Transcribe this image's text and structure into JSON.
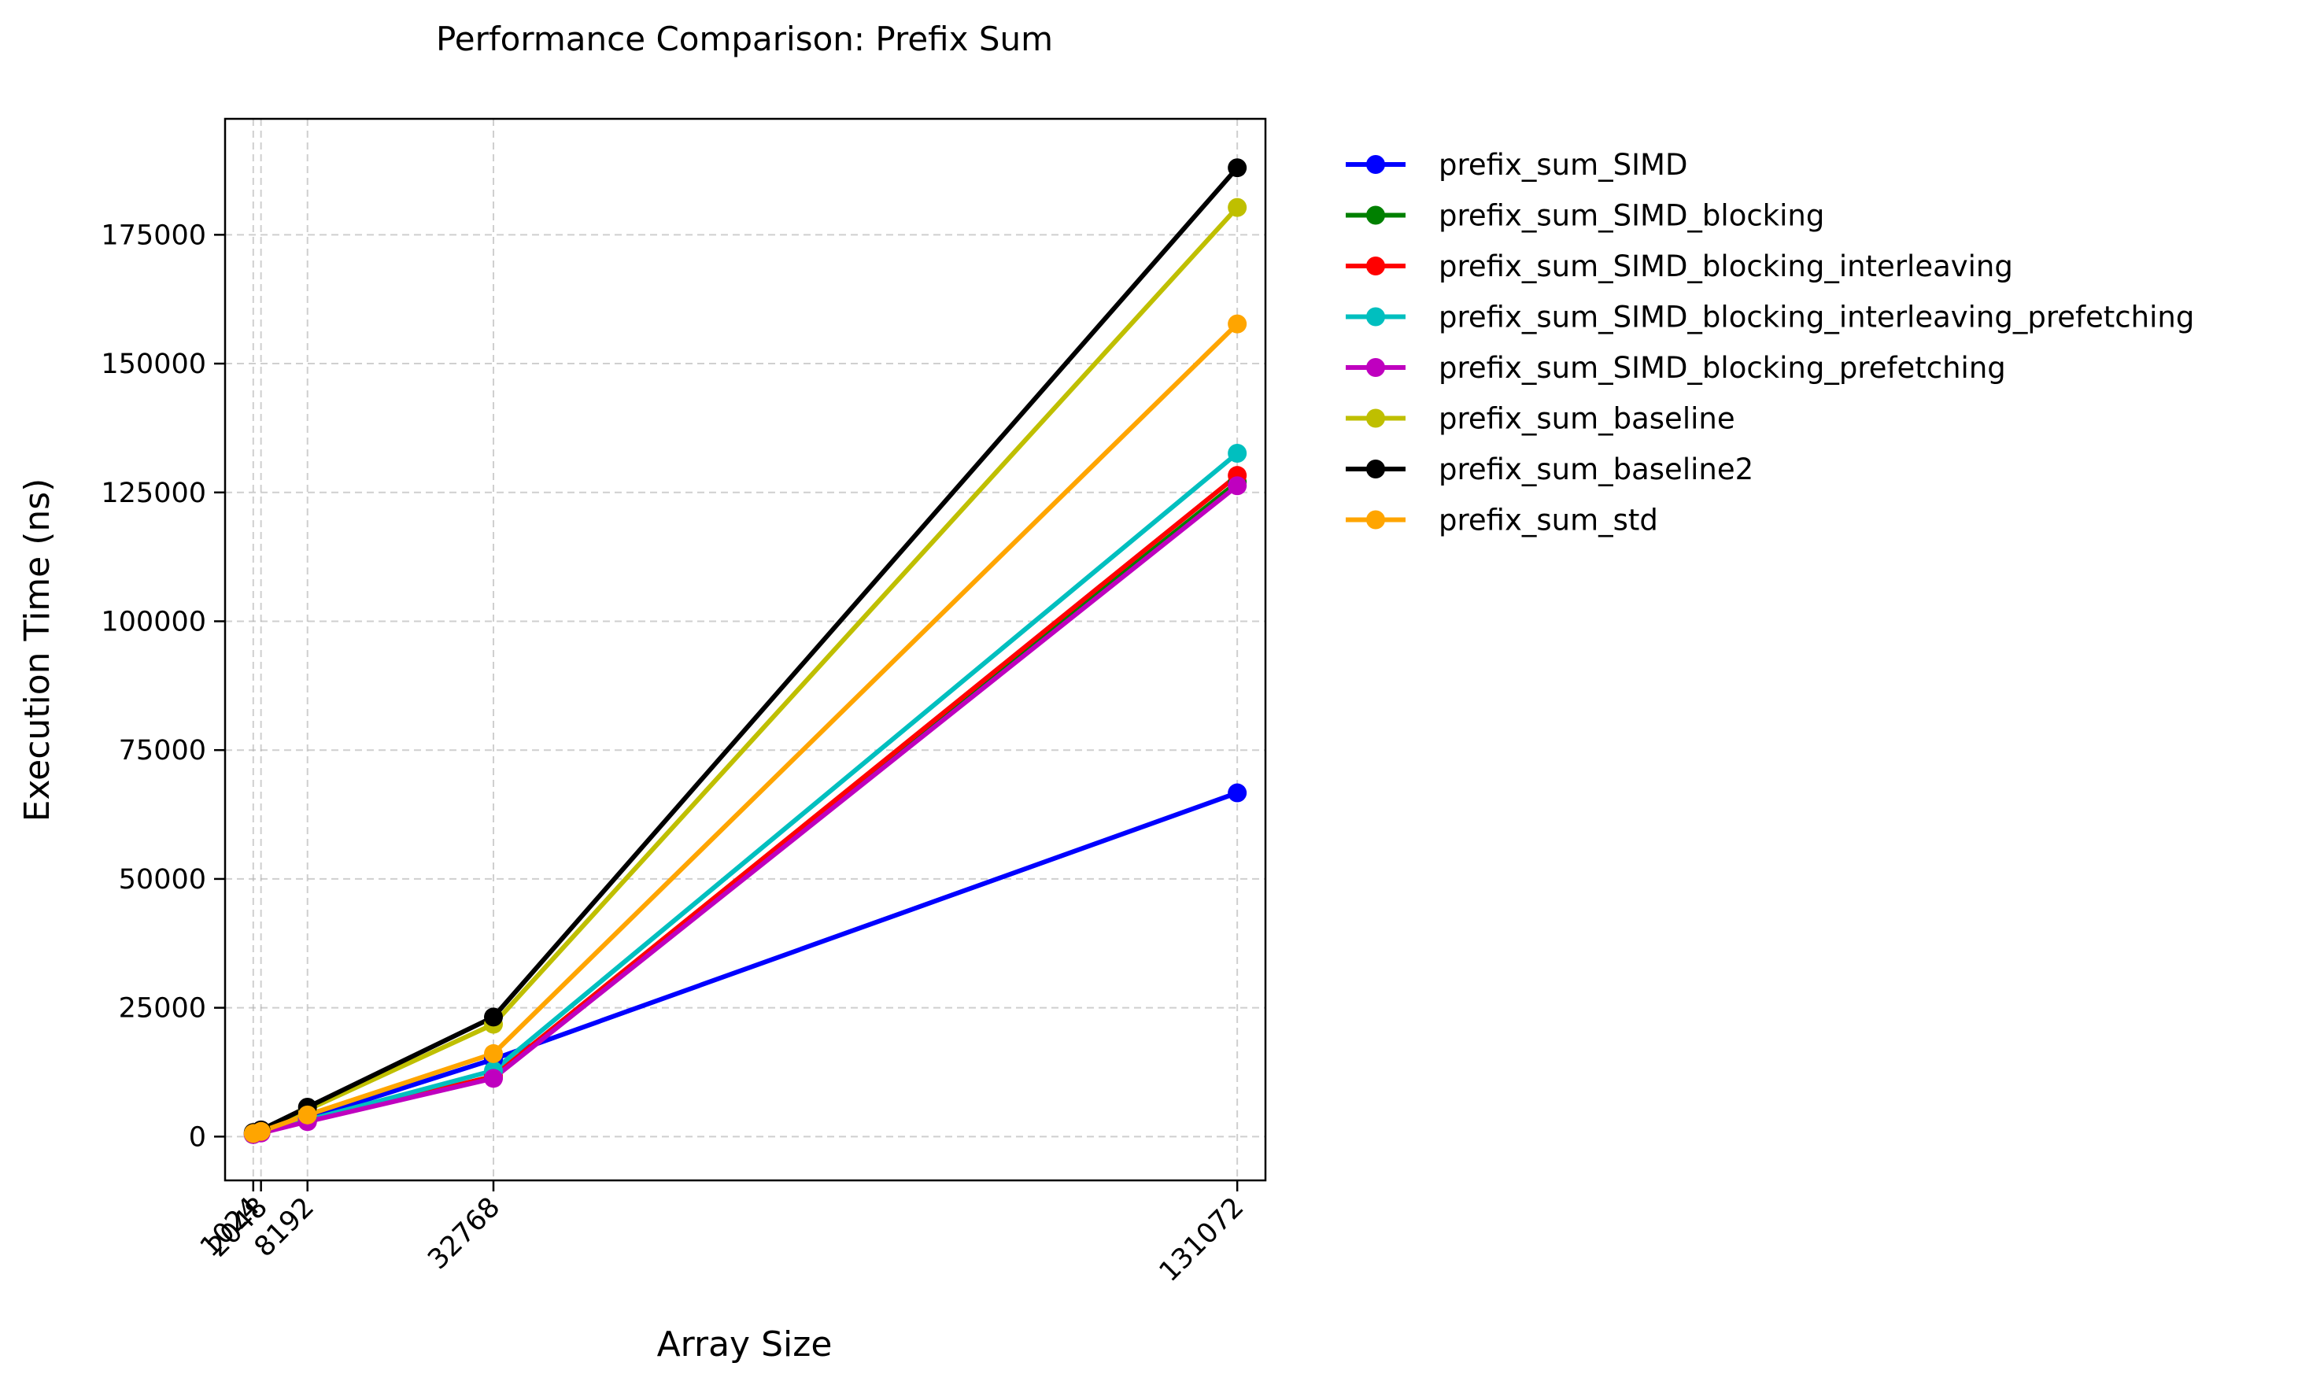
{
  "chart_data": {
    "type": "line",
    "title": "Performance Comparison: Prefix Sum",
    "xlabel": "Array Size",
    "ylabel": "Execution Time (ns)",
    "x": [
      1024,
      2048,
      8192,
      32768,
      131072
    ],
    "x_tick_labels": [
      "1024",
      "2048",
      "8192",
      "32768",
      "131072"
    ],
    "xlim": [
      -2700,
      134800
    ],
    "ylim": [
      -8500,
      197500
    ],
    "y_ticks": [
      0,
      25000,
      50000,
      75000,
      100000,
      125000,
      150000,
      175000
    ],
    "y_tick_labels": [
      "0",
      "25000",
      "50000",
      "75000",
      "100000",
      "125000",
      "150000",
      "175000"
    ],
    "grid": true,
    "legend_position": "outside-right",
    "series": [
      {
        "name": "prefix_sum_SIMD",
        "color": "#0000ff",
        "values": [
          500,
          900,
          3500,
          15000,
          66700
        ]
      },
      {
        "name": "prefix_sum_SIMD_blocking",
        "color": "#008000",
        "values": [
          400,
          800,
          3000,
          11500,
          127000
        ]
      },
      {
        "name": "prefix_sum_SIMD_blocking_interleaving",
        "color": "#ff0000",
        "values": [
          400,
          800,
          3000,
          11700,
          128300
        ]
      },
      {
        "name": "prefix_sum_SIMD_blocking_interleaving_prefetching",
        "color": "#00bfbf",
        "values": [
          400,
          800,
          3200,
          12800,
          132600
        ]
      },
      {
        "name": "prefix_sum_SIMD_blocking_prefetching",
        "color": "#bf00bf",
        "values": [
          400,
          700,
          2900,
          11300,
          126300
        ]
      },
      {
        "name": "prefix_sum_baseline",
        "color": "#bfbf00",
        "values": [
          700,
          1200,
          5200,
          21800,
          180300
        ]
      },
      {
        "name": "prefix_sum_baseline2",
        "color": "#000000",
        "values": [
          800,
          1300,
          5700,
          23200,
          188000
        ]
      },
      {
        "name": "prefix_sum_std",
        "color": "#ffa500",
        "values": [
          600,
          1000,
          4200,
          16100,
          157700
        ]
      }
    ]
  }
}
